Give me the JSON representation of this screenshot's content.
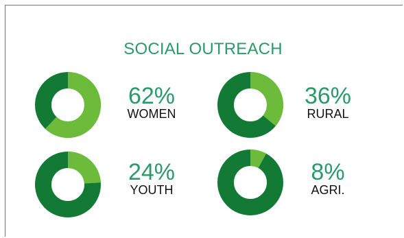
{
  "title": "SOCIAL OUTREACH",
  "colors": {
    "accent": "#2b9a6b",
    "ring_base": "#127a35",
    "ring_highlight": "#6dbb3a"
  },
  "chart_data": [
    {
      "type": "pie",
      "label": "WOMEN",
      "value": 62,
      "value_text": "62%"
    },
    {
      "type": "pie",
      "label": "RURAL",
      "value": 36,
      "value_text": "36%"
    },
    {
      "type": "pie",
      "label": "YOUTH",
      "value": 24,
      "value_text": "24%"
    },
    {
      "type": "pie",
      "label": "AGRI.",
      "value": 8,
      "value_text": "8%"
    }
  ]
}
